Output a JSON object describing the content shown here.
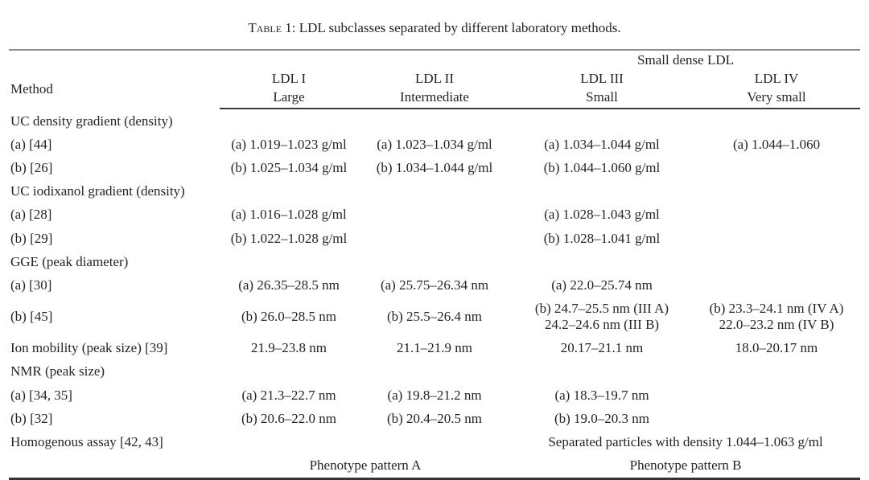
{
  "colors": {
    "background": "#ffffff",
    "text": "#242424",
    "rule_light": "#8e8e8e",
    "rule_dark": "#3a3a3a"
  },
  "title": {
    "label": "Table 1:",
    "text": "LDL subclasses separated by different laboratory methods."
  },
  "table": {
    "span_header": "Small dense LDL",
    "columns": [
      {
        "name": "Method",
        "sub": ""
      },
      {
        "name": "LDL I",
        "sub": "Large"
      },
      {
        "name": "LDL II",
        "sub": "Intermediate"
      },
      {
        "name": "LDL III",
        "sub": "Small"
      },
      {
        "name": "LDL IV",
        "sub": "Very small"
      }
    ],
    "rows": [
      {
        "type": "section",
        "cells": [
          {
            "text": "UC density gradient (density)",
            "span": 5,
            "align": "left"
          }
        ]
      },
      {
        "type": "data",
        "cells": [
          {
            "text": "(a) [44]"
          },
          {
            "text": "(a) 1.019–1.023 g/ml"
          },
          {
            "text": "(a) 1.023–1.034 g/ml"
          },
          {
            "text": "(a) 1.034–1.044 g/ml"
          },
          {
            "text": "(a) 1.044–1.060"
          }
        ]
      },
      {
        "type": "data",
        "cells": [
          {
            "text": "(b) [26]"
          },
          {
            "text": "(b) 1.025–1.034 g/ml"
          },
          {
            "text": "(b) 1.034–1.044 g/ml"
          },
          {
            "text": "(b) 1.044–1.060 g/ml"
          },
          {
            "text": ""
          }
        ]
      },
      {
        "type": "section",
        "cells": [
          {
            "text": "UC iodixanol gradient (density)",
            "span": 5,
            "align": "left"
          }
        ]
      },
      {
        "type": "data",
        "cells": [
          {
            "text": "(a) [28]"
          },
          {
            "text": "(a) 1.016–1.028 g/ml"
          },
          {
            "text": ""
          },
          {
            "text": "(a) 1.028–1.043 g/ml"
          },
          {
            "text": ""
          }
        ]
      },
      {
        "type": "data",
        "cells": [
          {
            "text": "(b) [29]"
          },
          {
            "text": "(b) 1.022–1.028 g/ml"
          },
          {
            "text": ""
          },
          {
            "text": "(b) 1.028–1.041 g/ml"
          },
          {
            "text": ""
          }
        ]
      },
      {
        "type": "section",
        "cells": [
          {
            "text": "GGE (peak diameter)",
            "span": 5,
            "align": "left"
          }
        ]
      },
      {
        "type": "data",
        "cells": [
          {
            "text": "(a) [30]"
          },
          {
            "text": "(a) 26.35–28.5 nm"
          },
          {
            "text": "(a) 25.75–26.34 nm"
          },
          {
            "text": "(a) 22.0–25.74 nm"
          },
          {
            "text": ""
          }
        ]
      },
      {
        "type": "data",
        "cells": [
          {
            "text": "(b) [45]"
          },
          {
            "text": "(b) 26.0–28.5 nm"
          },
          {
            "text": "(b) 25.5–26.4 nm"
          },
          {
            "text": "(b) 24.7–25.5 nm (III A)\n24.2–24.6 nm (III B)"
          },
          {
            "text": "(b) 23.3–24.1 nm (IV A)\n22.0–23.2 nm (IV B)"
          }
        ]
      },
      {
        "type": "data",
        "cells": [
          {
            "text": "Ion mobility (peak size) [39]"
          },
          {
            "text": "21.9–23.8 nm"
          },
          {
            "text": "21.1–21.9 nm"
          },
          {
            "text": "20.17–21.1 nm"
          },
          {
            "text": "18.0–20.17 nm"
          }
        ]
      },
      {
        "type": "section",
        "cells": [
          {
            "text": "NMR (peak size)",
            "span": 5,
            "align": "left"
          }
        ]
      },
      {
        "type": "data",
        "cells": [
          {
            "text": "(a) [34, 35]"
          },
          {
            "text": "(a) 21.3–22.7 nm"
          },
          {
            "text": "(a) 19.8–21.2 nm"
          },
          {
            "text": "(a) 18.3–19.7 nm"
          },
          {
            "text": ""
          }
        ]
      },
      {
        "type": "data",
        "cells": [
          {
            "text": "(b) [32]"
          },
          {
            "text": "(b) 20.6–22.0 nm"
          },
          {
            "text": "(b) 20.4–20.5 nm"
          },
          {
            "text": "(b) 19.0–20.3 nm"
          },
          {
            "text": ""
          }
        ]
      },
      {
        "type": "data",
        "cells": [
          {
            "text": "Homogenous assay [42, 43]"
          },
          {
            "text": ""
          },
          {
            "text": ""
          },
          {
            "text": "Separated particles with density 1.044–1.063 g/ml",
            "span": 2
          }
        ]
      },
      {
        "type": "data",
        "cells": [
          {
            "text": ""
          },
          {
            "text": "Phenotype pattern A",
            "span": 2
          },
          {
            "text": "Phenotype pattern B",
            "span": 2
          }
        ]
      }
    ]
  }
}
